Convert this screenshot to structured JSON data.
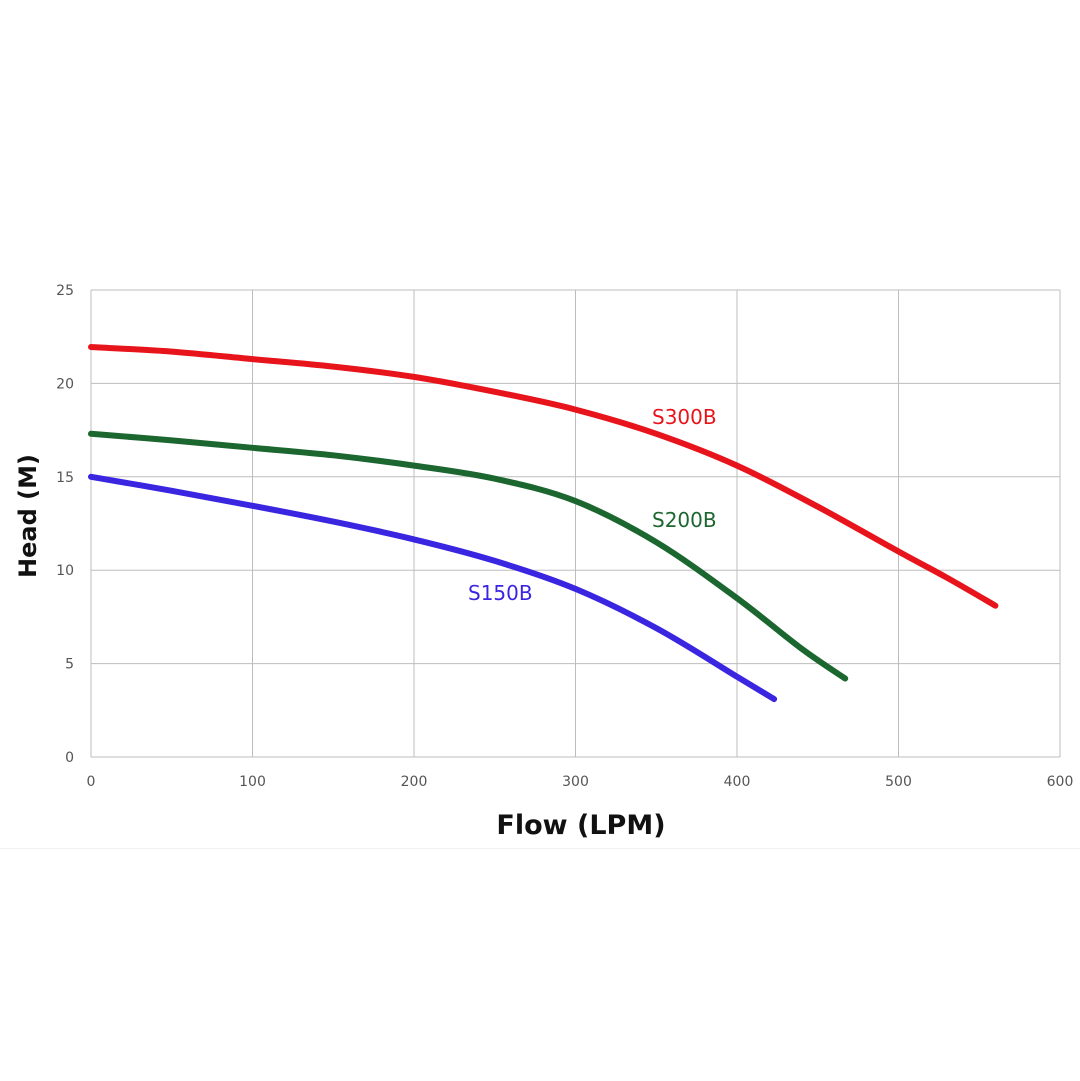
{
  "chart_data": {
    "type": "line",
    "title": "",
    "xlabel": "Flow (LPM)",
    "ylabel": "Head (M)",
    "xlim": [
      0,
      600
    ],
    "ylim": [
      0,
      25
    ],
    "x_ticks": [
      "0",
      "100",
      "200",
      "300",
      "400",
      "500",
      "600"
    ],
    "y_ticks": [
      "0",
      "5",
      "10",
      "15",
      "20",
      "25"
    ],
    "grid": true,
    "legend": "none",
    "series": [
      {
        "name": "S300B",
        "color": "#e8141b",
        "x": [
          0,
          50,
          100,
          150,
          200,
          250,
          300,
          350,
          400,
          450,
          500,
          530,
          560
        ],
        "y": [
          21.95,
          21.7,
          21.3,
          20.9,
          20.35,
          19.55,
          18.6,
          17.3,
          15.6,
          13.4,
          11.0,
          9.6,
          8.1
        ]
      },
      {
        "name": "S200B",
        "color": "#1c6630",
        "x": [
          0,
          50,
          100,
          150,
          200,
          250,
          300,
          350,
          400,
          440,
          467
        ],
        "y": [
          17.3,
          16.95,
          16.55,
          16.15,
          15.6,
          14.9,
          13.7,
          11.5,
          8.5,
          5.8,
          4.2
        ]
      },
      {
        "name": "S150B",
        "color": "#3a25e0",
        "x": [
          0,
          50,
          100,
          150,
          200,
          250,
          300,
          350,
          400,
          423
        ],
        "y": [
          15.0,
          14.25,
          13.45,
          12.6,
          11.65,
          10.5,
          9.0,
          6.9,
          4.3,
          3.1
        ]
      }
    ]
  }
}
